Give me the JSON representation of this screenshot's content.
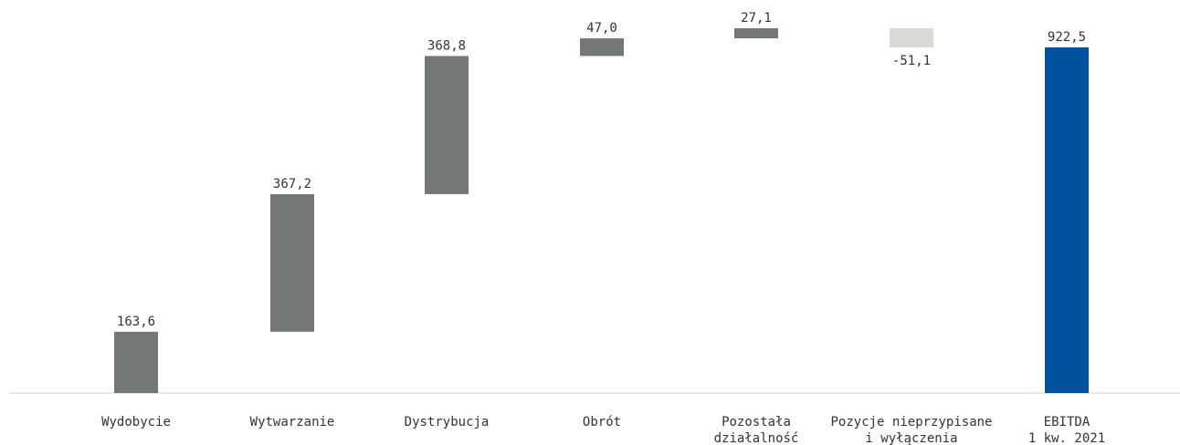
{
  "chart_data": {
    "type": "bar",
    "subtype": "waterfall",
    "categories": [
      [
        "Wydobycie"
      ],
      [
        "Wytwarzanie"
      ],
      [
        "Dystrybucja"
      ],
      [
        "Obrót"
      ],
      [
        "Pozostała",
        "działalność"
      ],
      [
        "Pozycje nieprzypisane",
        "i wyłączenia"
      ],
      [
        "EBITDA",
        "1 kw. 2021"
      ]
    ],
    "values": [
      163.6,
      367.2,
      368.8,
      47.0,
      27.1,
      -51.1,
      922.5
    ],
    "value_labels": [
      "163,6",
      "367,2",
      "368,8",
      "47,0",
      "27,1",
      "-51,1",
      "922,5"
    ],
    "bar_kinds": [
      "increase",
      "increase",
      "increase",
      "increase",
      "increase",
      "decrease",
      "total"
    ],
    "colors": {
      "increase": "#747777",
      "decrease": "#d9d9d5",
      "total": "#00529c",
      "axis": "#cfcfcf",
      "text": "#333333"
    },
    "title": "",
    "xlabel": "",
    "ylabel": "",
    "ylim": [
      0,
      960
    ],
    "grid": false,
    "legend": "none"
  }
}
